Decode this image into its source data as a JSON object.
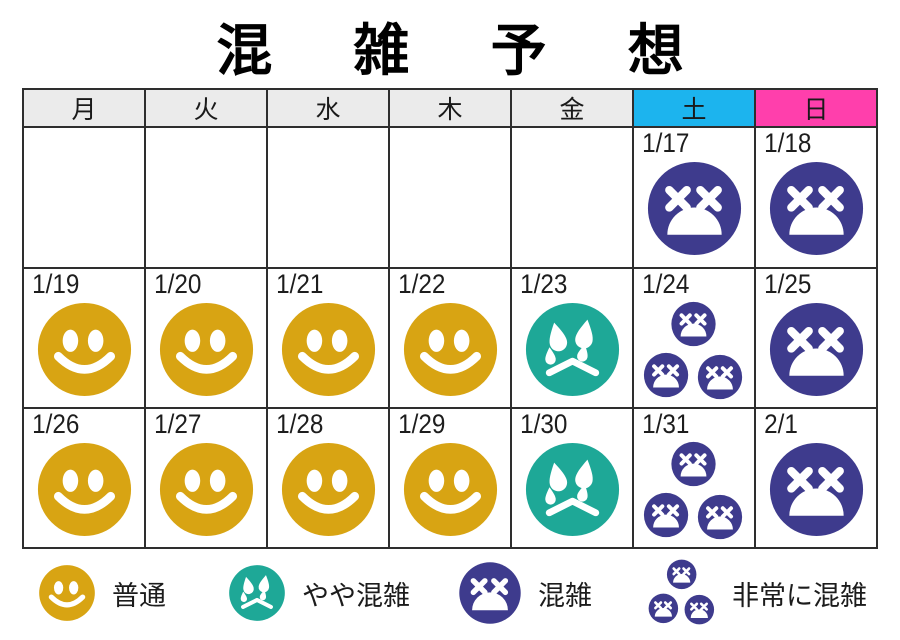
{
  "title": "混雑予想",
  "weekdays": [
    {
      "label": "月",
      "type": "weekday"
    },
    {
      "label": "火",
      "type": "weekday"
    },
    {
      "label": "水",
      "type": "weekday"
    },
    {
      "label": "木",
      "type": "weekday"
    },
    {
      "label": "金",
      "type": "weekday"
    },
    {
      "label": "土",
      "type": "saturday"
    },
    {
      "label": "日",
      "type": "sunday"
    }
  ],
  "weeks": [
    [
      {
        "date": "",
        "level": ""
      },
      {
        "date": "",
        "level": ""
      },
      {
        "date": "",
        "level": ""
      },
      {
        "date": "",
        "level": ""
      },
      {
        "date": "",
        "level": ""
      },
      {
        "date": "1/17",
        "level": "crowded"
      },
      {
        "date": "1/18",
        "level": "crowded"
      }
    ],
    [
      {
        "date": "1/19",
        "level": "normal"
      },
      {
        "date": "1/20",
        "level": "normal"
      },
      {
        "date": "1/21",
        "level": "normal"
      },
      {
        "date": "1/22",
        "level": "normal"
      },
      {
        "date": "1/23",
        "level": "slightly_crowded"
      },
      {
        "date": "1/24",
        "level": "very_crowded"
      },
      {
        "date": "1/25",
        "level": "crowded"
      }
    ],
    [
      {
        "date": "1/26",
        "level": "normal"
      },
      {
        "date": "1/27",
        "level": "normal"
      },
      {
        "date": "1/28",
        "level": "normal"
      },
      {
        "date": "1/29",
        "level": "normal"
      },
      {
        "date": "1/30",
        "level": "slightly_crowded"
      },
      {
        "date": "1/31",
        "level": "very_crowded"
      },
      {
        "date": "2/1",
        "level": "crowded"
      }
    ]
  ],
  "legend": [
    {
      "label": "普通",
      "level": "normal"
    },
    {
      "label": "やや混雑",
      "level": "slightly_crowded"
    },
    {
      "label": "混雑",
      "level": "crowded"
    },
    {
      "label": "非常に混雑",
      "level": "very_crowded"
    }
  ],
  "colors": {
    "normal": "#D8A413",
    "slightly_crowded": "#1EA897",
    "crowded": "#3E3B8D",
    "saturday_bg": "#1CB4EE",
    "sunday_bg": "#FF3FAC",
    "header_bg": "#EBEBEB",
    "border": "#2E2E2E"
  }
}
